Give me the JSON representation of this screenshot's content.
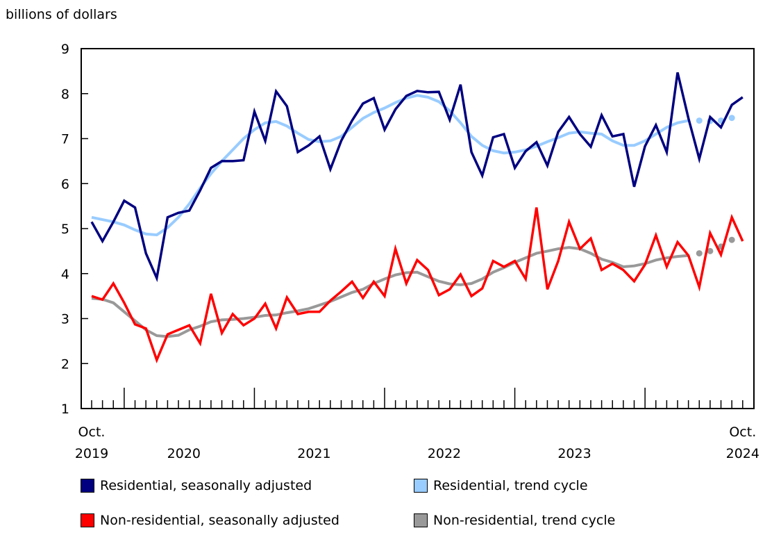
{
  "chart_data": {
    "type": "line",
    "ylabel": "billions of dollars",
    "ylim": [
      1,
      9
    ],
    "yticks": [
      "1",
      "2",
      "3",
      "4",
      "5",
      "6",
      "7",
      "8",
      "9"
    ],
    "x_start": "2019-10",
    "x_end": "2024-10",
    "x_tick_labels": [
      {
        "top": "Oct.",
        "bottom": "2019"
      },
      {
        "top": "",
        "bottom": "2020"
      },
      {
        "top": "",
        "bottom": "2021"
      },
      {
        "top": "",
        "bottom": "2022"
      },
      {
        "top": "",
        "bottom": "2023"
      },
      {
        "top": "Oct.",
        "bottom": "2024"
      }
    ],
    "grid": false,
    "legend_position": "bottom",
    "series": [
      {
        "name": "Residential, seasonally adjusted",
        "color": "#000080",
        "style": "line",
        "values": [
          5.15,
          4.72,
          5.15,
          5.62,
          5.47,
          4.45,
          3.9,
          5.25,
          5.35,
          5.4,
          5.85,
          6.35,
          6.5,
          6.5,
          6.52,
          7.6,
          6.95,
          8.05,
          7.72,
          6.7,
          6.85,
          7.05,
          6.32,
          6.95,
          7.4,
          7.78,
          7.9,
          7.2,
          7.65,
          7.95,
          8.06,
          8.03,
          8.04,
          7.42,
          8.2,
          6.7,
          6.18,
          7.03,
          7.1,
          6.35,
          6.72,
          6.92,
          6.4,
          7.15,
          7.48,
          7.1,
          6.82,
          7.52,
          7.05,
          7.1,
          5.93,
          6.83,
          7.3,
          6.7,
          8.47,
          7.45,
          6.55,
          7.48,
          7.25,
          7.75,
          7.92
        ]
      },
      {
        "name": "Residential, trend cycle",
        "color": "#99ccff",
        "style": "trend",
        "values": [
          5.25,
          5.2,
          5.15,
          5.08,
          4.97,
          4.88,
          4.86,
          5.02,
          5.25,
          5.55,
          5.9,
          6.22,
          6.5,
          6.75,
          7.0,
          7.2,
          7.35,
          7.38,
          7.28,
          7.12,
          6.98,
          6.93,
          6.95,
          7.05,
          7.25,
          7.45,
          7.58,
          7.68,
          7.8,
          7.9,
          7.96,
          7.92,
          7.82,
          7.62,
          7.35,
          7.05,
          6.85,
          6.73,
          6.68,
          6.7,
          6.75,
          6.83,
          6.93,
          7.02,
          7.12,
          7.15,
          7.12,
          7.1,
          6.95,
          6.85,
          6.85,
          6.95,
          7.1,
          7.25,
          7.35,
          7.4,
          7.4,
          7.39,
          7.4,
          7.46,
          null
        ]
      },
      {
        "name": "Non-residential, seasonally adjusted",
        "color": "#ff0000",
        "style": "line",
        "values": [
          3.5,
          3.42,
          3.78,
          3.35,
          2.87,
          2.78,
          2.08,
          2.65,
          2.75,
          2.85,
          2.45,
          3.55,
          2.68,
          3.1,
          2.85,
          3.0,
          3.33,
          2.78,
          3.47,
          3.1,
          3.15,
          3.15,
          3.4,
          3.6,
          3.82,
          3.46,
          3.82,
          3.5,
          4.55,
          3.78,
          4.3,
          4.08,
          3.52,
          3.65,
          3.98,
          3.5,
          3.67,
          4.28,
          4.15,
          4.28,
          3.88,
          5.47,
          3.65,
          4.28,
          5.15,
          4.55,
          4.78,
          4.08,
          4.22,
          4.08,
          3.83,
          4.2,
          4.85,
          4.15,
          4.7,
          4.4,
          3.7,
          4.9,
          4.42,
          5.25,
          4.72
        ]
      },
      {
        "name": "Non-residential, trend cycle",
        "color": "#999999",
        "style": "trend",
        "values": [
          3.45,
          3.43,
          3.35,
          3.15,
          2.95,
          2.75,
          2.62,
          2.6,
          2.63,
          2.75,
          2.83,
          2.93,
          2.97,
          2.98,
          3.0,
          3.03,
          3.07,
          3.08,
          3.13,
          3.17,
          3.22,
          3.3,
          3.38,
          3.48,
          3.58,
          3.65,
          3.78,
          3.88,
          3.97,
          4.02,
          4.03,
          3.93,
          3.83,
          3.77,
          3.75,
          3.78,
          3.88,
          4.03,
          4.13,
          4.25,
          4.35,
          4.45,
          4.5,
          4.55,
          4.58,
          4.55,
          4.45,
          4.32,
          4.25,
          4.15,
          4.17,
          4.22,
          4.3,
          4.35,
          4.38,
          4.4,
          4.45,
          4.5,
          4.6,
          4.75,
          null
        ]
      }
    ],
    "trend_dotted_from": "2024-06"
  }
}
